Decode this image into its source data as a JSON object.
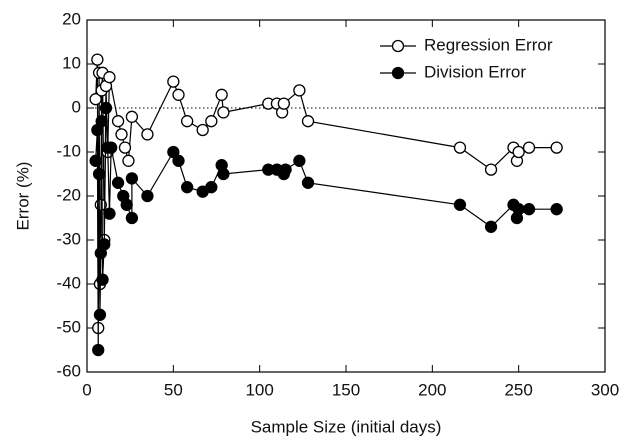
{
  "chart_data": {
    "type": "line",
    "xlabel": "Sample Size (initial days)",
    "ylabel": "Error (%)",
    "xlim": [
      0,
      300
    ],
    "ylim": [
      -60,
      20
    ],
    "xticks": [
      0,
      50,
      100,
      150,
      200,
      250,
      300
    ],
    "yticks": [
      -60,
      -50,
      -40,
      -30,
      -20,
      -10,
      0,
      10,
      20
    ],
    "hline": 0,
    "legend": "upper right",
    "series": [
      {
        "name": "Regression Error",
        "color": "#000000",
        "marker": "open",
        "x": [
          5,
          6,
          6.5,
          7,
          7.5,
          8,
          8.5,
          9,
          10,
          11,
          12,
          13,
          18,
          20,
          22,
          24,
          26,
          35,
          50,
          53,
          58,
          67,
          72,
          78,
          79,
          105,
          110,
          113,
          114,
          123,
          128,
          216,
          234,
          247,
          249,
          250,
          256,
          272
        ],
        "values": [
          2,
          11,
          -50,
          8,
          -40,
          -22,
          4,
          8,
          -30,
          5,
          -10,
          7,
          -3,
          -6,
          -9,
          -12,
          -2,
          -6,
          6,
          3,
          -3,
          -5,
          -3,
          3,
          -1,
          1,
          1,
          -1,
          1,
          4,
          -3,
          -9,
          -14,
          -9,
          -12,
          -10,
          -9,
          -9
        ]
      },
      {
        "name": "Division Error",
        "color": "#000000",
        "marker": "filled",
        "x": [
          5,
          6,
          6.5,
          7,
          7.5,
          8,
          8.5,
          9,
          10,
          11,
          12,
          13,
          14,
          18,
          21,
          23,
          26,
          26,
          35,
          50,
          53,
          58,
          67,
          72,
          78,
          79,
          105,
          110,
          114,
          115,
          123,
          128,
          216,
          234,
          247,
          249,
          250,
          256,
          272
        ],
        "values": [
          -12,
          -5,
          -55,
          -15,
          -47,
          -33,
          -3,
          -39,
          -31,
          0,
          -9,
          -24,
          -9,
          -17,
          -20,
          -22,
          -25,
          -16,
          -20,
          -10,
          -12,
          -18,
          -19,
          -18,
          -13,
          -15,
          -14,
          -14,
          -15,
          -14,
          -12,
          -17,
          -22,
          -27,
          -22,
          -25,
          -23,
          -23,
          -23
        ]
      }
    ]
  }
}
